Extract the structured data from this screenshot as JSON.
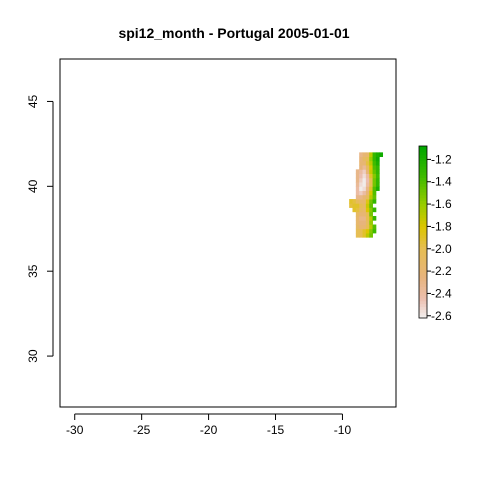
{
  "chart_data": {
    "type": "heatmap",
    "title": "spi12_month - Portugal 2005-01-01",
    "xlabel": "",
    "ylabel": "",
    "xlim": [
      -31.1,
      -6.0
    ],
    "ylim": [
      27.0,
      47.5
    ],
    "x_ticks": [
      "-30",
      "-25",
      "-20",
      "-15",
      "-10"
    ],
    "x_tick_values": [
      -30,
      -25,
      -20,
      -15,
      -10
    ],
    "y_ticks": [
      "30",
      "35",
      "40",
      "45"
    ],
    "y_tick_values": [
      30,
      35,
      40,
      45
    ],
    "grid": false,
    "cell_size_deg": 0.25,
    "grid_origin": {
      "lon": -9.5,
      "lat": 37.0
    },
    "legend": {
      "position": "right",
      "labels": [
        "-1.2",
        "-1.4",
        "-1.6",
        "-1.8",
        "-2.0",
        "-2.2",
        "-2.4",
        "-2.6"
      ],
      "values": [
        -1.2,
        -1.4,
        -1.6,
        -1.8,
        -2.0,
        -2.2,
        -2.4,
        -2.6
      ],
      "range": [
        -2.62,
        -1.08
      ]
    },
    "color_scale": [
      {
        "value": -2.62,
        "color": "#f2f2f2"
      },
      {
        "value": -2.45,
        "color": "#ecbfb0"
      },
      {
        "value": -2.25,
        "color": "#e7b47c"
      },
      {
        "value": -2.0,
        "color": "#e6be54"
      },
      {
        "value": -1.8,
        "color": "#dcc600"
      },
      {
        "value": -1.6,
        "color": "#98cc00"
      },
      {
        "value": -1.35,
        "color": "#3fbb00"
      },
      {
        "value": -1.08,
        "color": "#00a600"
      }
    ],
    "rows": [
      {
        "lat": 37.0,
        "values": [
          null,
          null,
          -2.0,
          -2.0,
          -1.9,
          -1.7,
          -1.5,
          null
        ]
      },
      {
        "lat": 37.25,
        "values": [
          null,
          null,
          -2.0,
          -2.0,
          -1.9,
          -1.8,
          -1.55,
          -1.35
        ]
      },
      {
        "lat": 37.5,
        "values": [
          null,
          null,
          -2.1,
          -2.2,
          -2.2,
          -2.0,
          -1.7,
          -1.4
        ]
      },
      {
        "lat": 37.75,
        "values": [
          null,
          null,
          -2.15,
          -2.25,
          -2.25,
          -2.05,
          -1.6,
          null
        ]
      },
      {
        "lat": 38.0,
        "values": [
          null,
          null,
          -2.15,
          -2.3,
          -2.3,
          -2.0,
          -1.7,
          -1.3
        ]
      },
      {
        "lat": 38.25,
        "values": [
          null,
          null,
          -2.1,
          -2.2,
          -2.2,
          -2.0,
          -1.5,
          null
        ]
      },
      {
        "lat": 38.5,
        "values": [
          null,
          -1.9,
          -1.95,
          -2.1,
          -2.15,
          -1.8,
          -1.55,
          -1.3
        ]
      },
      {
        "lat": 38.75,
        "values": [
          -1.95,
          -1.9,
          -1.9,
          -2.0,
          -2.1,
          -1.75,
          -1.45,
          null
        ]
      },
      {
        "lat": 39.0,
        "values": [
          -1.9,
          -1.95,
          -2.05,
          -2.15,
          -2.15,
          -1.85,
          -1.5,
          -1.3
        ]
      },
      {
        "lat": 39.25,
        "values": [
          null,
          null,
          -2.3,
          -2.3,
          -2.2,
          -2.05,
          -1.7,
          -1.45
        ]
      },
      {
        "lat": 39.5,
        "values": [
          null,
          null,
          -2.4,
          -2.5,
          -2.4,
          -2.2,
          -1.8,
          -1.4
        ]
      },
      {
        "lat": 39.75,
        "values": [
          null,
          null,
          -2.4,
          -2.6,
          -2.55,
          -2.3,
          -1.9,
          -1.4,
          -1.2
        ]
      },
      {
        "lat": 40.0,
        "values": [
          null,
          null,
          -2.35,
          -2.55,
          -2.6,
          -2.4,
          -2.0,
          -1.5,
          -1.3
        ]
      },
      {
        "lat": 40.25,
        "values": [
          null,
          null,
          -2.3,
          -2.5,
          -2.6,
          -2.45,
          -2.0,
          -1.5,
          -1.3
        ]
      },
      {
        "lat": 40.5,
        "values": [
          null,
          null,
          -2.3,
          -2.45,
          -2.55,
          -2.4,
          -1.9,
          -1.55,
          -1.35
        ]
      },
      {
        "lat": 40.75,
        "values": [
          null,
          null,
          -2.3,
          -2.4,
          -2.5,
          -2.2,
          -1.75,
          -1.45,
          -1.3
        ]
      },
      {
        "lat": 41.0,
        "values": [
          null,
          null,
          null,
          -2.25,
          -2.35,
          -2.1,
          -1.8,
          -1.4,
          -1.3
        ]
      },
      {
        "lat": 41.25,
        "values": [
          null,
          null,
          null,
          -2.2,
          -2.2,
          -1.95,
          -1.7,
          -1.35,
          -1.2
        ]
      },
      {
        "lat": 41.5,
        "values": [
          null,
          null,
          null,
          -2.25,
          -2.1,
          -2.0,
          -1.6,
          -1.3,
          -1.15
        ]
      },
      {
        "lat": 41.75,
        "values": [
          null,
          null,
          null,
          -2.3,
          -2.2,
          -2.15,
          -1.7,
          -1.3,
          -1.2,
          -1.15
        ]
      }
    ]
  }
}
